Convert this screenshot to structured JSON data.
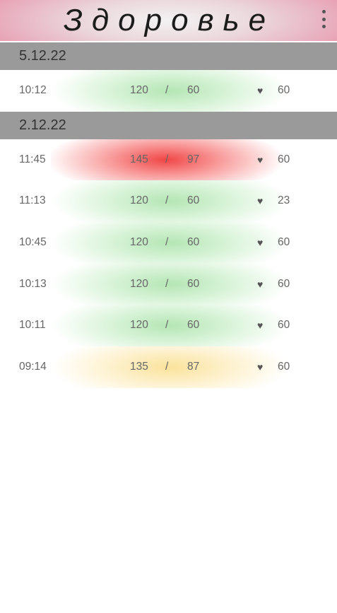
{
  "app": {
    "title": "Здоровье"
  },
  "groups": [
    {
      "date": "5.12.22",
      "entries": [
        {
          "time": "10:12",
          "systolic": "120",
          "separator": "/",
          "diastolic": "60",
          "pulse": "60",
          "status": "green"
        }
      ]
    },
    {
      "date": "2.12.22",
      "entries": [
        {
          "time": "11:45",
          "systolic": "145",
          "separator": "/",
          "diastolic": "97",
          "pulse": "60",
          "status": "red"
        },
        {
          "time": "11:13",
          "systolic": "120",
          "separator": "/",
          "diastolic": "60",
          "pulse": "23",
          "status": "green"
        },
        {
          "time": "10:45",
          "systolic": "120",
          "separator": "/",
          "diastolic": "60",
          "pulse": "60",
          "status": "green"
        },
        {
          "time": "10:13",
          "systolic": "120",
          "separator": "/",
          "diastolic": "60",
          "pulse": "60",
          "status": "green"
        },
        {
          "time": "10:11",
          "systolic": "120",
          "separator": "/",
          "diastolic": "60",
          "pulse": "60",
          "status": "green"
        },
        {
          "time": "09:14",
          "systolic": "135",
          "separator": "/",
          "diastolic": "87",
          "pulse": "60",
          "status": "yellow"
        }
      ]
    }
  ],
  "icons": {
    "menu": "more-vert-icon",
    "pulse": "heart-icon"
  },
  "colors": {
    "red": "#f03c3c",
    "green": "#b0e4b0",
    "yellow": "#fae196",
    "header": "#9a9a9a",
    "appbar_accent": "#e79ab0"
  }
}
